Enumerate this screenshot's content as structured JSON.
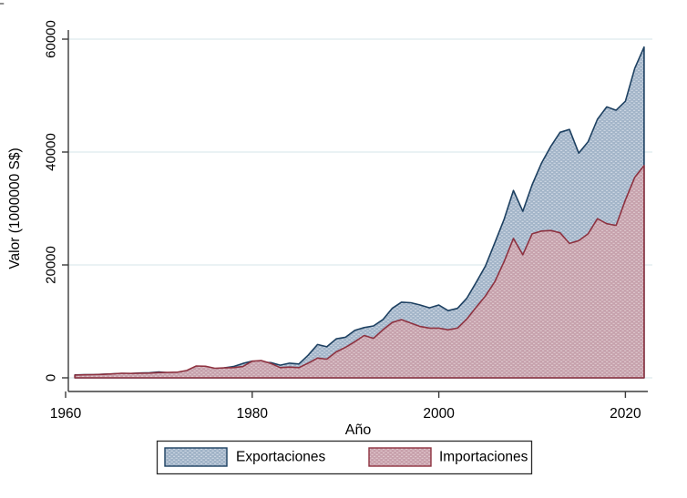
{
  "figure": {
    "corner_fragment": "F"
  },
  "chart_data": {
    "type": "area",
    "title": "",
    "xlabel": "Año",
    "ylabel": "Valor (1000000 S$)",
    "legend_position": "bottom",
    "grid": true,
    "xlim": [
      1959.7,
      2023.6
    ],
    "ylim": [
      0,
      60000
    ],
    "xticks": [
      1960,
      1980,
      2000,
      2020
    ],
    "yticks": [
      0,
      20000,
      40000,
      60000
    ],
    "x": [
      1961,
      1962,
      1963,
      1964,
      1965,
      1966,
      1967,
      1968,
      1969,
      1970,
      1971,
      1972,
      1973,
      1974,
      1975,
      1976,
      1977,
      1978,
      1979,
      1980,
      1981,
      1982,
      1983,
      1984,
      1985,
      1986,
      1987,
      1988,
      1989,
      1990,
      1991,
      1992,
      1993,
      1994,
      1995,
      1996,
      1997,
      1998,
      1999,
      2000,
      2001,
      2002,
      2003,
      2004,
      2005,
      2006,
      2007,
      2008,
      2009,
      2010,
      2011,
      2012,
      2013,
      2014,
      2015,
      2016,
      2017,
      2018,
      2019,
      2020,
      2021,
      2022
    ],
    "series": [
      {
        "name": "Exportaciones",
        "values": [
          510,
          560,
          550,
          640,
          690,
          780,
          760,
          860,
          900,
          1050,
          900,
          950,
          1200,
          1700,
          1400,
          1450,
          1750,
          2000,
          2550,
          2950,
          2750,
          2700,
          2250,
          2600,
          2450,
          4000,
          5900,
          5500,
          6900,
          7200,
          8400,
          8900,
          9200,
          10300,
          12300,
          13400,
          13300,
          12900,
          12400,
          12900,
          11900,
          12300,
          14100,
          16900,
          19800,
          23900,
          28100,
          33200,
          29500,
          34200,
          38000,
          41000,
          43500,
          44000,
          39800,
          41800,
          45800,
          48000,
          47400,
          49000,
          54800,
          58600
        ],
        "fill": "#9fb2c6",
        "fill_light": "#c8d3e0",
        "border": "#1d4061"
      },
      {
        "name": "Importaciones",
        "values": [
          490,
          540,
          560,
          620,
          700,
          800,
          780,
          820,
          840,
          930,
          950,
          1000,
          1300,
          2100,
          2050,
          1700,
          1750,
          1800,
          2000,
          2950,
          3050,
          2550,
          1800,
          1900,
          1800,
          2600,
          3500,
          3300,
          4600,
          5400,
          6400,
          7500,
          7000,
          8500,
          9800,
          10300,
          9700,
          9100,
          8800,
          8800,
          8500,
          8800,
          10400,
          12500,
          14500,
          17000,
          20600,
          24700,
          21800,
          25500,
          26000,
          26100,
          25700,
          23800,
          24300,
          25500,
          28200,
          27300,
          27000,
          31500,
          35500,
          37600
        ],
        "fill": "#c7a0ab",
        "fill_light": "#ddc3c9",
        "border": "#8e3240"
      }
    ],
    "colors": {
      "gridline": "#dde9ee",
      "axis": "#3b3b3b",
      "legend_border": "#2b2b2b",
      "background": "#ffffff"
    }
  }
}
